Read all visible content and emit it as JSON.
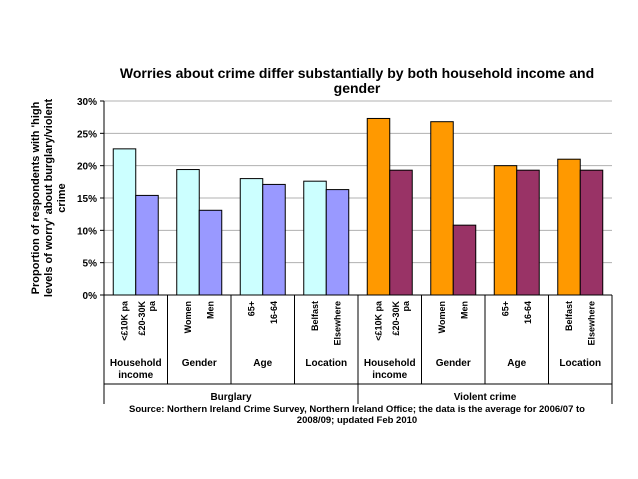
{
  "chart_data": {
    "type": "bar",
    "title_lines": [
      "Worries about crime differ substantially by both household income and",
      "gender"
    ],
    "ylabel_lines": [
      "Proportion of respondents with 'high",
      "levels of worry' about burglary/violent",
      "crime"
    ],
    "yticks": [
      "0%",
      "5%",
      "10%",
      "15%",
      "20%",
      "25%",
      "30%"
    ],
    "ylim": [
      0,
      30
    ],
    "grid": true,
    "colors": {
      "burglary_1": "#ccffff",
      "burglary_2": "#9999ff",
      "violent_1": "#ff9900",
      "violent_2": "#993366"
    },
    "sections": [
      {
        "label": "Burglary",
        "groups": [
          {
            "label": "Household income",
            "label_lines": [
              "Household",
              "income"
            ],
            "categories": [
              [
                "<£10K pa"
              ],
              [
                "£20-30K",
                "pa"
              ]
            ],
            "values": [
              22.6,
              15.4
            ]
          },
          {
            "label": "Gender",
            "label_lines": [
              "Gender"
            ],
            "categories": [
              [
                "Women"
              ],
              [
                "Men"
              ]
            ],
            "values": [
              19.4,
              13.1
            ]
          },
          {
            "label": "Age",
            "label_lines": [
              "Age"
            ],
            "categories": [
              [
                "65+"
              ],
              [
                "16-64"
              ]
            ],
            "values": [
              18.0,
              17.1
            ]
          },
          {
            "label": "Location",
            "label_lines": [
              "Location"
            ],
            "categories": [
              [
                "Belfast"
              ],
              [
                "Elsewhere"
              ]
            ],
            "values": [
              17.6,
              16.3
            ]
          }
        ]
      },
      {
        "label": "Violent crime",
        "groups": [
          {
            "label": "Household income",
            "label_lines": [
              "Household",
              "income"
            ],
            "categories": [
              [
                "<£10K pa"
              ],
              [
                "£20-30K",
                "pa"
              ]
            ],
            "values": [
              27.3,
              19.3
            ]
          },
          {
            "label": "Gender",
            "label_lines": [
              "Gender"
            ],
            "categories": [
              [
                "Women"
              ],
              [
                "Men"
              ]
            ],
            "values": [
              26.8,
              10.8
            ]
          },
          {
            "label": "Age",
            "label_lines": [
              "Age"
            ],
            "categories": [
              [
                "65+"
              ],
              [
                "16-64"
              ]
            ],
            "values": [
              20.0,
              19.3
            ]
          },
          {
            "label": "Location",
            "label_lines": [
              "Location"
            ],
            "categories": [
              [
                "Belfast"
              ],
              [
                "Elsewhere"
              ]
            ],
            "values": [
              21.0,
              19.3
            ]
          }
        ]
      }
    ],
    "source_lines": [
      "Source: Northern Ireland Crime Survey, Northern Ireland Office; the data is the average for 2006/07 to",
      "2008/09; updated Feb 2010"
    ]
  }
}
